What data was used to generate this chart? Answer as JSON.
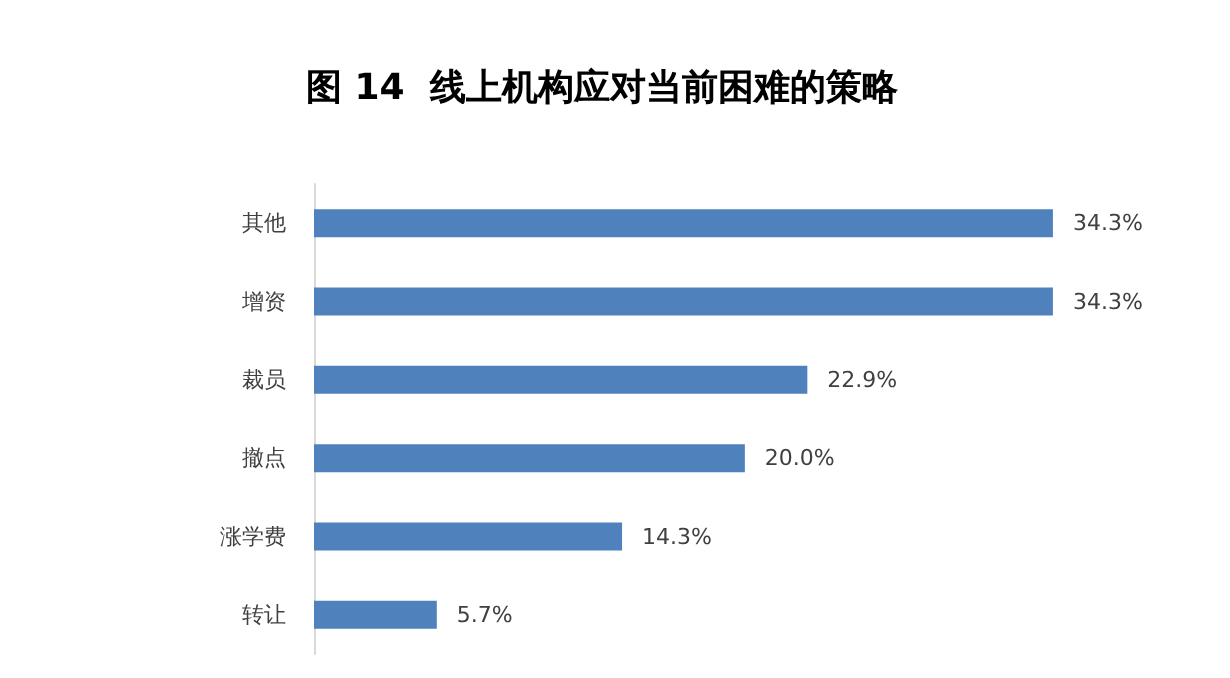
{
  "chart_data": {
    "type": "bar",
    "orientation": "horizontal",
    "title": "图 14  线上机构应对当前困难的策略",
    "categories": [
      "其他",
      "增资",
      "裁员",
      "撤点",
      "涨学费",
      "转让"
    ],
    "values": [
      34.3,
      34.3,
      22.9,
      20.0,
      14.3,
      5.7
    ],
    "value_labels": [
      "34.3%",
      "34.3%",
      "22.9%",
      "20.0%",
      "14.3%",
      "5.7%"
    ],
    "color": "#4f81bd"
  }
}
